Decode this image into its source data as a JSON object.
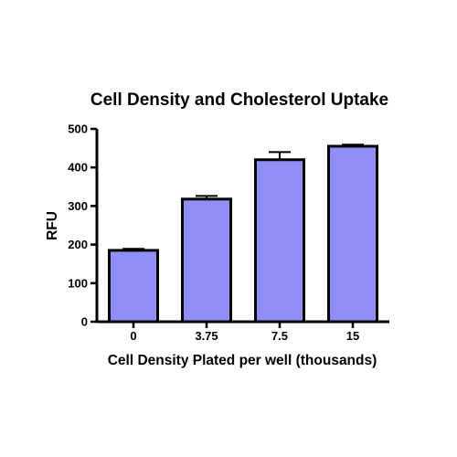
{
  "chart_data": {
    "type": "bar",
    "title": "Cell  Density and Cholesterol  Uptake",
    "xlabel": "Cell Density Plated per well (thousands)",
    "ylabel": "RFU",
    "categories": [
      "0",
      "3.75",
      "7.5",
      "15"
    ],
    "values": [
      185,
      318,
      420,
      455
    ],
    "error": [
      4,
      8,
      20,
      4
    ],
    "ylim": [
      0,
      500
    ],
    "yticks": [
      0,
      100,
      200,
      300,
      400,
      500
    ],
    "grid": false,
    "bar_color": "#8f8ff7",
    "edge_color": "#000000"
  }
}
